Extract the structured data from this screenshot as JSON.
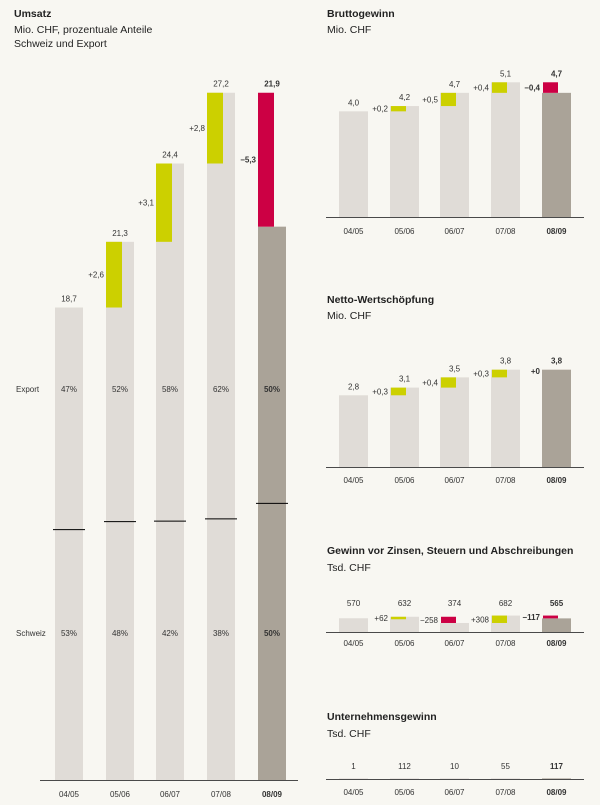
{
  "colors": {
    "bar": "#e0dcd7",
    "last": "#aaa398",
    "up": "#ccd000",
    "down": "#cc0044",
    "axis": "#4a4a4a",
    "text": "#333333",
    "bg": "#f8f7f2"
  },
  "chart_data": [
    {
      "id": "umsatz",
      "type": "bar",
      "title": "Umsatz",
      "subtitle_lines": [
        "Mio. CHF, prozentuale Anteile",
        "Schweiz und Export"
      ],
      "categories": [
        "04/05",
        "05/06",
        "06/07",
        "07/08",
        "08/09"
      ],
      "values": [
        18.7,
        21.3,
        24.4,
        27.2,
        21.9
      ],
      "value_labels": [
        "18,7",
        "21,3",
        "24,4",
        "27,2",
        "21,9"
      ],
      "changes": [
        2.6,
        3.1,
        2.8,
        -5.3
      ],
      "change_labels": [
        "+2,6",
        "+3,1",
        "+2,8",
        "−5,3"
      ],
      "ylim": [
        0,
        30
      ],
      "series_labels": {
        "export": "Export",
        "schweiz": "Schweiz"
      },
      "export_share": [
        47,
        52,
        58,
        62,
        50
      ],
      "export_labels": [
        "47%",
        "52%",
        "58%",
        "62%",
        "50%"
      ],
      "schweiz_share": [
        53,
        48,
        42,
        38,
        50
      ],
      "schweiz_labels": [
        "53%",
        "48%",
        "42%",
        "38%",
        "50%"
      ]
    },
    {
      "id": "brutto",
      "type": "bar",
      "title": "Bruttogewinn",
      "subtitle_lines": [
        "Mio. CHF"
      ],
      "categories": [
        "04/05",
        "05/06",
        "06/07",
        "07/08",
        "08/09"
      ],
      "values": [
        4.0,
        4.2,
        4.7,
        5.1,
        4.7
      ],
      "value_labels": [
        "4,0",
        "4,2",
        "4,7",
        "5,1",
        "4,7"
      ],
      "changes": [
        0.2,
        0.5,
        0.4,
        -0.4
      ],
      "change_labels": [
        "+0,2",
        "+0,5",
        "+0,4",
        "−0,4"
      ],
      "ylim": [
        0,
        5.3
      ]
    },
    {
      "id": "netto",
      "type": "bar",
      "title": "Netto-Wertschöpfung",
      "subtitle_lines": [
        "Mio. CHF"
      ],
      "categories": [
        "04/05",
        "05/06",
        "06/07",
        "07/08",
        "08/09"
      ],
      "values": [
        2.8,
        3.1,
        3.5,
        3.8,
        3.8
      ],
      "value_labels": [
        "2,8",
        "3,1",
        "3,5",
        "3,8",
        "3,8"
      ],
      "changes": [
        0.3,
        0.4,
        0.3,
        0
      ],
      "change_labels": [
        "+0,3",
        "+0,4",
        "+0,3",
        "+0"
      ],
      "ylim": [
        0,
        4.1
      ]
    },
    {
      "id": "ebitda",
      "type": "bar",
      "title": "Gewinn vor Zinsen, Steuern und Abschreibungen",
      "subtitle_lines": [
        "Tsd. CHF"
      ],
      "categories": [
        "04/05",
        "05/06",
        "06/07",
        "07/08",
        "08/09"
      ],
      "values": [
        570,
        632,
        374,
        682,
        565
      ],
      "value_labels": [
        "570",
        "632",
        "374",
        "682",
        "565"
      ],
      "changes": [
        62,
        -258,
        308,
        -117
      ],
      "change_labels": [
        "+62",
        "−258",
        "+308",
        "−117"
      ],
      "ylim": [
        0,
        1120
      ]
    },
    {
      "id": "gewinn",
      "type": "bar",
      "title": "Unternehmensgewinn",
      "subtitle_lines": [
        "Tsd. CHF"
      ],
      "categories": [
        "04/05",
        "05/06",
        "06/07",
        "07/08",
        "08/09"
      ],
      "values": [
        1,
        112,
        10,
        55,
        117
      ],
      "value_labels": [
        "1",
        "112",
        "10",
        "55",
        "117"
      ],
      "changes": [],
      "change_labels": [],
      "ylim": [
        0,
        3900
      ]
    }
  ]
}
